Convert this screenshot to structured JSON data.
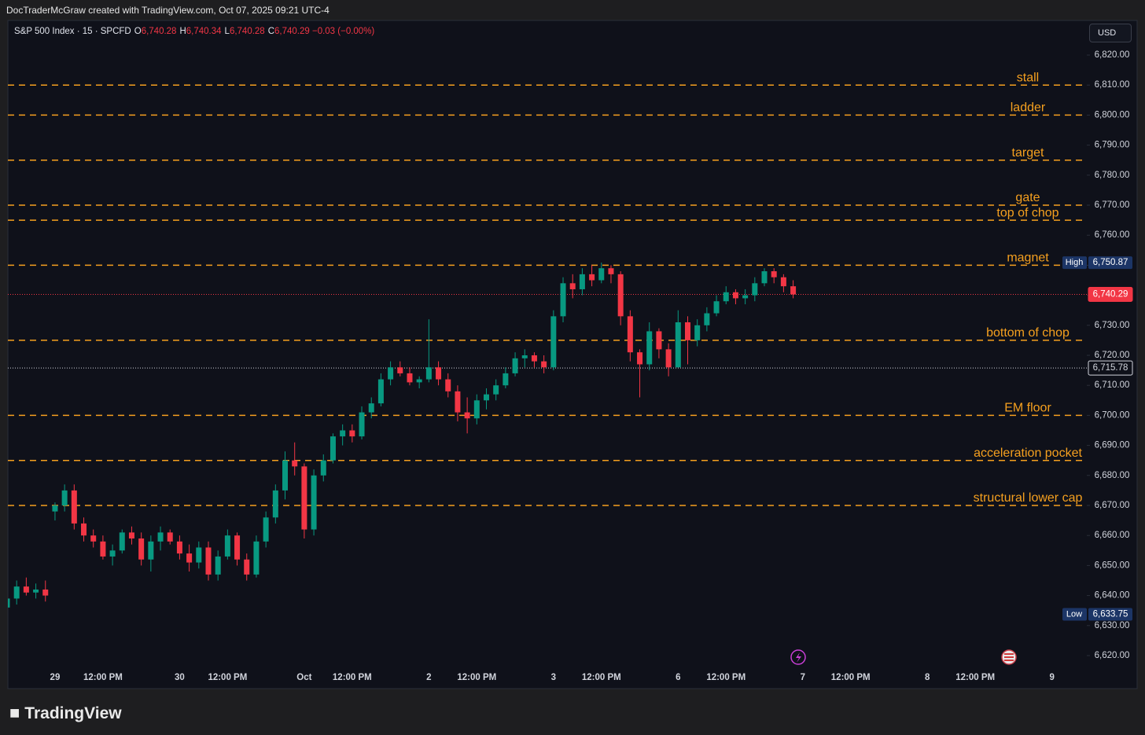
{
  "header": {
    "attribution": "DocTraderMcGraw created with TradingView.com, Oct 07, 2025 09:21 UTC-4",
    "symbol": "S&P 500 Index · 15 · SPCFD",
    "ohlc": [
      {
        "key": "O",
        "value": "6,740.28"
      },
      {
        "key": "H",
        "value": "6,740.34"
      },
      {
        "key": "L",
        "value": "6,740.28"
      },
      {
        "key": "C",
        "value": "6,740.29"
      }
    ],
    "change": "−0.03 (−0.00%)",
    "currency": "USD"
  },
  "footer": {
    "brand": "TradingView"
  },
  "chart_data": {
    "type": "candlestick",
    "categories": [
      null,
      null,
      null,
      null,
      null,
      "29",
      null,
      null,
      null,
      null,
      "12:00 PM",
      null,
      null,
      null,
      null,
      null,
      null,
      null,
      "30",
      null,
      null,
      null,
      null,
      "12:00 PM",
      null,
      null,
      null,
      null,
      null,
      null,
      null,
      "Oct",
      null,
      null,
      null,
      null,
      "12:00 PM",
      null,
      null,
      null,
      null,
      null,
      null,
      null,
      "2",
      null,
      null,
      null,
      null,
      "12:00 PM",
      null,
      null,
      null,
      null,
      null,
      null,
      null,
      "3",
      null,
      null,
      null,
      null,
      "12:00 PM",
      null,
      null,
      null,
      null,
      null,
      null,
      null,
      "6",
      null,
      null,
      null,
      null,
      "12:00 PM",
      null,
      null,
      null,
      null,
      null,
      null,
      null,
      "7",
      null,
      null,
      null,
      null,
      "12:00 PM",
      null,
      null,
      null,
      null,
      null,
      null,
      null,
      "8",
      null,
      null,
      null,
      null,
      "12:00 PM",
      null,
      null,
      null,
      null,
      null,
      null,
      null,
      "9",
      null,
      null,
      null
    ],
    "open": [
      6636,
      6639,
      6643,
      6641,
      6642,
      6668,
      6670,
      6675,
      6664,
      6660,
      6658,
      6653,
      6655,
      6661,
      6659,
      6652,
      6658,
      6661,
      6658,
      6654,
      6651,
      6656,
      6647,
      6653,
      6660,
      6652,
      6647,
      6658,
      6666,
      6675,
      6685,
      6683,
      6662,
      6680,
      6685,
      6693,
      6695,
      6693,
      6701,
      6704,
      6712,
      6716,
      6714,
      6711,
      6712,
      6716,
      6712,
      6708,
      6701,
      6699,
      6705,
      6707,
      6710,
      6714,
      6719,
      6720,
      6718,
      6716,
      6733,
      6744,
      6742,
      6747,
      6745,
      6749,
      6747,
      6733,
      6721,
      6717,
      6728,
      6722,
      6716,
      6731,
      6725,
      6730,
      6734,
      6738,
      6741,
      6739,
      6740,
      6744,
      6748,
      6746,
      6743,
      null,
      null,
      null,
      null,
      null,
      null,
      null,
      null,
      null,
      null,
      null,
      null,
      null,
      null,
      null,
      null,
      null,
      null,
      null,
      null,
      null,
      null,
      null,
      null,
      null,
      null,
      null,
      null,
      null,
      null
    ],
    "high": [
      6640,
      6645,
      6646,
      6644,
      6645,
      6671,
      6677,
      6677,
      6666,
      6662,
      6660,
      6657,
      6662,
      6663,
      6661,
      6660,
      6663,
      6662,
      6660,
      6657,
      6658,
      6658,
      6655,
      6662,
      6661,
      6654,
      6660,
      6668,
      6677,
      6688,
      6691,
      6684,
      6682,
      6687,
      6694,
      6697,
      6697,
      6703,
      6706,
      6714,
      6718,
      6718,
      6716,
      6713,
      6732,
      6718,
      6714,
      6710,
      6706,
      6707,
      6709,
      6712,
      6716,
      6721,
      6722,
      6721,
      6720,
      6735,
      6746,
      6747,
      6749,
      6750,
      6750.87,
      6750,
      6748,
      6735,
      6722,
      6731,
      6729,
      6724,
      6735,
      6733,
      6732,
      6736,
      6740,
      6743,
      6742,
      6742,
      6746,
      6749,
      6749,
      6747,
      6745,
      null,
      null,
      null,
      null,
      null,
      null,
      null,
      null,
      null,
      null,
      null,
      null,
      null,
      null,
      null,
      null,
      null,
      null,
      null,
      null,
      null,
      null,
      null,
      null,
      null,
      null,
      null,
      null,
      null,
      null
    ],
    "low": [
      6633.75,
      6637,
      6640,
      6639,
      6638,
      6665,
      6668,
      6662,
      6658,
      6656,
      6652,
      6650,
      6654,
      6657,
      6650,
      6648,
      6655,
      6657,
      6652,
      6648,
      6649,
      6645,
      6645,
      6652,
      6650,
      6645,
      6646,
      6656,
      6664,
      6672,
      6680,
      6659,
      6660,
      6678,
      6684,
      6690,
      6691,
      6692,
      6699,
      6703,
      6710,
      6713,
      6710,
      6709,
      6711,
      6710,
      6706,
      6698,
      6694,
      6697,
      6702,
      6705,
      6709,
      6713,
      6716,
      6716,
      6714,
      6715,
      6731,
      6739,
      6740,
      6743,
      6744,
      6744,
      6730,
      6718,
      6706,
      6715,
      6719,
      6713,
      6716,
      6717,
      6723,
      6728,
      6733,
      6737,
      6737,
      6737,
      6738,
      6743,
      6744,
      6741,
      6739,
      null,
      null,
      null,
      null,
      null,
      null,
      null,
      null,
      null,
      null,
      null,
      null,
      null,
      null,
      null,
      null,
      null,
      null,
      null,
      null,
      null,
      null,
      null,
      null,
      null,
      null,
      null,
      null,
      null,
      null
    ],
    "close": [
      6639,
      6643,
      6641,
      6642,
      6640,
      6670,
      6675,
      6664,
      6660,
      6658,
      6653,
      6655,
      6661,
      6659,
      6652,
      6658,
      6661,
      6658,
      6654,
      6651,
      6656,
      6647,
      6653,
      6660,
      6652,
      6647,
      6658,
      6666,
      6675,
      6685,
      6683,
      6662,
      6680,
      6685,
      6693,
      6695,
      6693,
      6701,
      6704,
      6712,
      6716,
      6714,
      6711,
      6712,
      6716,
      6712,
      6708,
      6701,
      6699,
      6705,
      6707,
      6710,
      6714,
      6719,
      6720,
      6718,
      6716,
      6733,
      6744,
      6742,
      6747,
      6745,
      6749,
      6747,
      6733,
      6721,
      6717,
      6728,
      6722,
      6716,
      6731,
      6725,
      6730,
      6734,
      6738,
      6741,
      6739,
      6740,
      6744,
      6748,
      6746,
      6743,
      6740.29,
      null,
      null,
      null,
      null,
      null,
      null,
      null,
      null,
      null,
      null,
      null,
      null,
      null,
      null,
      null,
      null,
      null,
      null,
      null,
      null,
      null,
      null,
      null,
      null,
      null,
      null,
      null,
      null,
      null,
      null
    ],
    "up_color": "#089981",
    "down_color": "#f23645",
    "ylim": [
      6609,
      6831
    ],
    "yticks": [
      {
        "value": 6620,
        "label": "6,620.00"
      },
      {
        "value": 6630,
        "label": "6,630.00"
      },
      {
        "value": 6640,
        "label": "6,640.00"
      },
      {
        "value": 6650,
        "label": "6,650.00"
      },
      {
        "value": 6660,
        "label": "6,660.00"
      },
      {
        "value": 6670,
        "label": "6,670.00"
      },
      {
        "value": 6680,
        "label": "6,680.00"
      },
      {
        "value": 6690,
        "label": "6,690.00"
      },
      {
        "value": 6700,
        "label": "6,700.00"
      },
      {
        "value": 6710,
        "label": "6,710.00"
      },
      {
        "value": 6720,
        "label": "6,720.00"
      },
      {
        "value": 6730,
        "label": "6,730.00"
      },
      {
        "value": 6740,
        "label": "6,740.00"
      },
      {
        "value": 6750,
        "label": "6,750.00"
      },
      {
        "value": 6760,
        "label": "6,760.00"
      },
      {
        "value": 6770,
        "label": "6,770.00"
      },
      {
        "value": 6780,
        "label": "6,780.00"
      },
      {
        "value": 6790,
        "label": "6,790.00"
      },
      {
        "value": 6800,
        "label": "6,800.00"
      },
      {
        "value": 6810,
        "label": "6,810.00"
      },
      {
        "value": 6820,
        "label": "6,820.00"
      }
    ],
    "grid": false,
    "levels": {
      "names": [
        "stall",
        "ladder",
        "target",
        "gate",
        "top of chop",
        "magnet",
        "bottom of chop",
        "EM floor",
        "acceleration pocket",
        "structural lower cap"
      ],
      "values": [
        6810,
        6800,
        6785,
        6770,
        6765,
        6750,
        6725,
        6700,
        6685,
        6670
      ],
      "color": "#f5a01f"
    },
    "markers": {
      "names": [
        "High",
        "Low"
      ],
      "values": [
        6750.87,
        6633.75
      ],
      "value_labels": [
        "6,750.87",
        "6,633.75"
      ],
      "color": "#1c3566"
    },
    "price_lines": {
      "values": [
        6740.29,
        6715.78
      ],
      "value_labels": [
        "6,740.29",
        "6,715.78"
      ],
      "colors": [
        "#f23645",
        "#d1d4dc"
      ]
    }
  }
}
